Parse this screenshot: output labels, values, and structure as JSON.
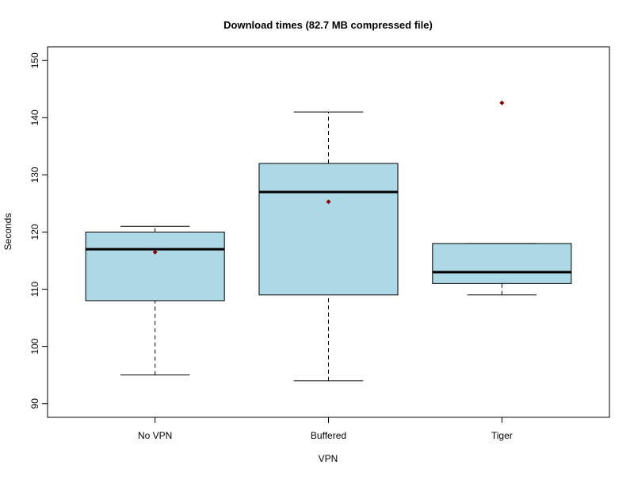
{
  "chart_data": {
    "type": "boxplot",
    "title": "Download times (82.7 MB compressed file)",
    "x_label": "VPN",
    "y_label": "Seconds",
    "categories": [
      "No VPN",
      "Buffered",
      "Tiger"
    ],
    "min": [
      95,
      94,
      109
    ],
    "q1": [
      108,
      109,
      111
    ],
    "median": [
      117,
      127,
      113
    ],
    "q3": [
      120,
      132,
      118
    ],
    "max": [
      121,
      141,
      118
    ],
    "mean": [
      116.5,
      125.3,
      142.6
    ],
    "color": "#add8e6",
    "mean_color": "#8b0000",
    "ylim": [
      87.6,
      152.4
    ],
    "yticks": [
      90,
      100,
      110,
      120,
      130,
      140,
      150
    ]
  }
}
